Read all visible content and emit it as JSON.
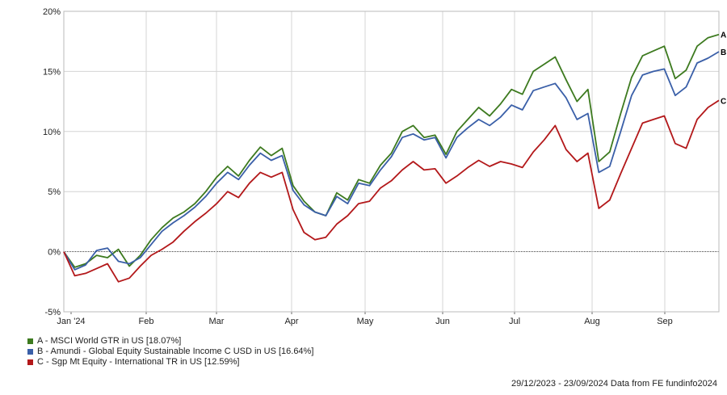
{
  "chart_data": {
    "type": "line",
    "x_tick_labels": [
      "Jan '24",
      "Feb",
      "Mar",
      "Apr",
      "May",
      "Jun",
      "Jul",
      "Aug",
      "Sep"
    ],
    "y_tick_labels": [
      "20%",
      "15%",
      "10%",
      "5%",
      "0%",
      "-5%"
    ],
    "ylim": [
      -5,
      20
    ],
    "grid": true,
    "series": [
      {
        "key": "A",
        "name": "A - MSCI World GTR in US [18.07%]",
        "color": "#3d7a1f",
        "values": [
          0.0,
          -1.3,
          -1.0,
          -0.3,
          -0.5,
          0.2,
          -1.2,
          -0.3,
          1.0,
          2.0,
          2.8,
          3.3,
          4.0,
          5.0,
          6.2,
          7.1,
          6.3,
          7.6,
          8.7,
          8.0,
          8.6,
          5.5,
          4.2,
          3.3,
          3.0,
          4.9,
          4.3,
          6.0,
          5.7,
          7.2,
          8.2,
          10.0,
          10.5,
          9.5,
          9.7,
          8.1,
          10.0,
          11.0,
          12.0,
          11.3,
          12.3,
          13.5,
          13.1,
          15.0,
          15.6,
          16.2,
          14.3,
          12.5,
          13.5,
          7.5,
          8.3,
          11.5,
          14.5,
          16.3,
          16.7,
          17.1,
          14.4,
          15.1,
          17.1,
          17.8,
          18.07
        ]
      },
      {
        "key": "B",
        "name": "B - Amundi - Global Equity Sustainable Income C USD in US [16.64%]",
        "color": "#3a5fa8",
        "values": [
          0.0,
          -1.5,
          -1.1,
          0.1,
          0.3,
          -0.8,
          -1.0,
          -0.5,
          0.6,
          1.7,
          2.4,
          3.0,
          3.7,
          4.6,
          5.7,
          6.6,
          6.0,
          7.2,
          8.2,
          7.6,
          8.0,
          5.1,
          3.9,
          3.3,
          3.0,
          4.6,
          4.0,
          5.7,
          5.5,
          6.8,
          7.9,
          9.5,
          9.8,
          9.3,
          9.5,
          7.8,
          9.5,
          10.3,
          11.0,
          10.5,
          11.2,
          12.2,
          11.8,
          13.4,
          13.7,
          14.0,
          12.8,
          11.0,
          11.5,
          6.6,
          7.1,
          10.0,
          13.0,
          14.7,
          15.0,
          15.2,
          13.0,
          13.7,
          15.7,
          16.1,
          16.64
        ]
      },
      {
        "key": "C",
        "name": "C - Sgp Mt Equity - International TR in US [12.59%]",
        "color": "#b3181a",
        "values": [
          0.0,
          -2.0,
          -1.8,
          -1.4,
          -1.0,
          -2.5,
          -2.2,
          -1.2,
          -0.3,
          0.2,
          0.8,
          1.7,
          2.5,
          3.2,
          4.0,
          5.0,
          4.5,
          5.7,
          6.6,
          6.2,
          6.6,
          3.5,
          1.6,
          1.0,
          1.2,
          2.3,
          3.0,
          4.0,
          4.2,
          5.3,
          5.9,
          6.8,
          7.5,
          6.8,
          6.9,
          5.7,
          6.3,
          7.0,
          7.6,
          7.1,
          7.5,
          7.3,
          7.0,
          8.3,
          9.3,
          10.5,
          8.5,
          7.5,
          8.2,
          3.6,
          4.3,
          6.5,
          8.6,
          10.7,
          11.0,
          11.3,
          9.0,
          8.6,
          11.0,
          12.0,
          12.59
        ]
      }
    ]
  },
  "legend": [
    {
      "label": "A - MSCI World GTR in US [18.07%]",
      "color": "#3d7a1f"
    },
    {
      "label": "B - Amundi - Global Equity Sustainable Income C USD in US [16.64%]",
      "color": "#3a5fa8"
    },
    {
      "label": "C - Sgp Mt Equity - International TR in US [12.59%]",
      "color": "#b3181a"
    }
  ],
  "footer": {
    "text": "29/12/2023 - 23/09/2024 Data from FE fundinfo2024"
  }
}
